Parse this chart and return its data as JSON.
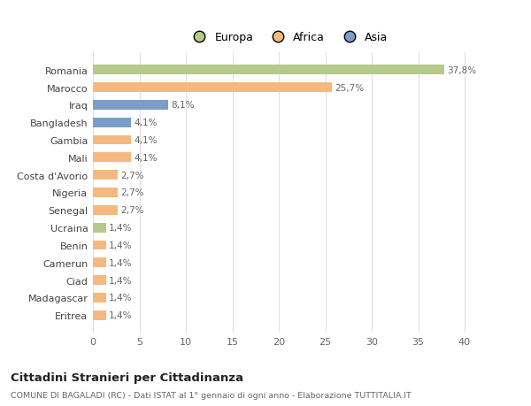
{
  "categories": [
    "Eritrea",
    "Madagascar",
    "Ciad",
    "Camerun",
    "Benin",
    "Ucraina",
    "Senegal",
    "Nigeria",
    "Costa d'Avorio",
    "Mali",
    "Gambia",
    "Bangladesh",
    "Iraq",
    "Marocco",
    "Romania"
  ],
  "values": [
    1.4,
    1.4,
    1.4,
    1.4,
    1.4,
    1.4,
    2.7,
    2.7,
    2.7,
    4.1,
    4.1,
    4.1,
    8.1,
    25.7,
    37.8
  ],
  "colors": [
    "#f5b97f",
    "#f5b97f",
    "#f5b97f",
    "#f5b97f",
    "#f5b97f",
    "#b5c98a",
    "#f5b97f",
    "#f5b97f",
    "#f5b97f",
    "#f5b97f",
    "#f5b97f",
    "#7b9dc9",
    "#7b9dc9",
    "#f5b97f",
    "#b5c98a"
  ],
  "labels": [
    "1,4%",
    "1,4%",
    "1,4%",
    "1,4%",
    "1,4%",
    "1,4%",
    "2,7%",
    "2,7%",
    "2,7%",
    "4,1%",
    "4,1%",
    "4,1%",
    "8,1%",
    "25,7%",
    "37,8%"
  ],
  "xlim": [
    0,
    42
  ],
  "xticks": [
    0,
    5,
    10,
    15,
    20,
    25,
    30,
    35,
    40
  ],
  "legend_labels": [
    "Europa",
    "Africa",
    "Asia"
  ],
  "legend_colors": [
    "#b5c98a",
    "#f5b97f",
    "#7b9dc9"
  ],
  "title": "Cittadini Stranieri per Cittadinanza",
  "subtitle": "COMUNE DI BAGALADI (RC) - Dati ISTAT al 1° gennaio di ogni anno - Elaborazione TUTTITALIA.IT",
  "bg_color": "#ffffff",
  "grid_color": "#e0e0e0",
  "bar_height": 0.55,
  "label_fontsize": 7.5,
  "ytick_fontsize": 8,
  "xtick_fontsize": 8
}
